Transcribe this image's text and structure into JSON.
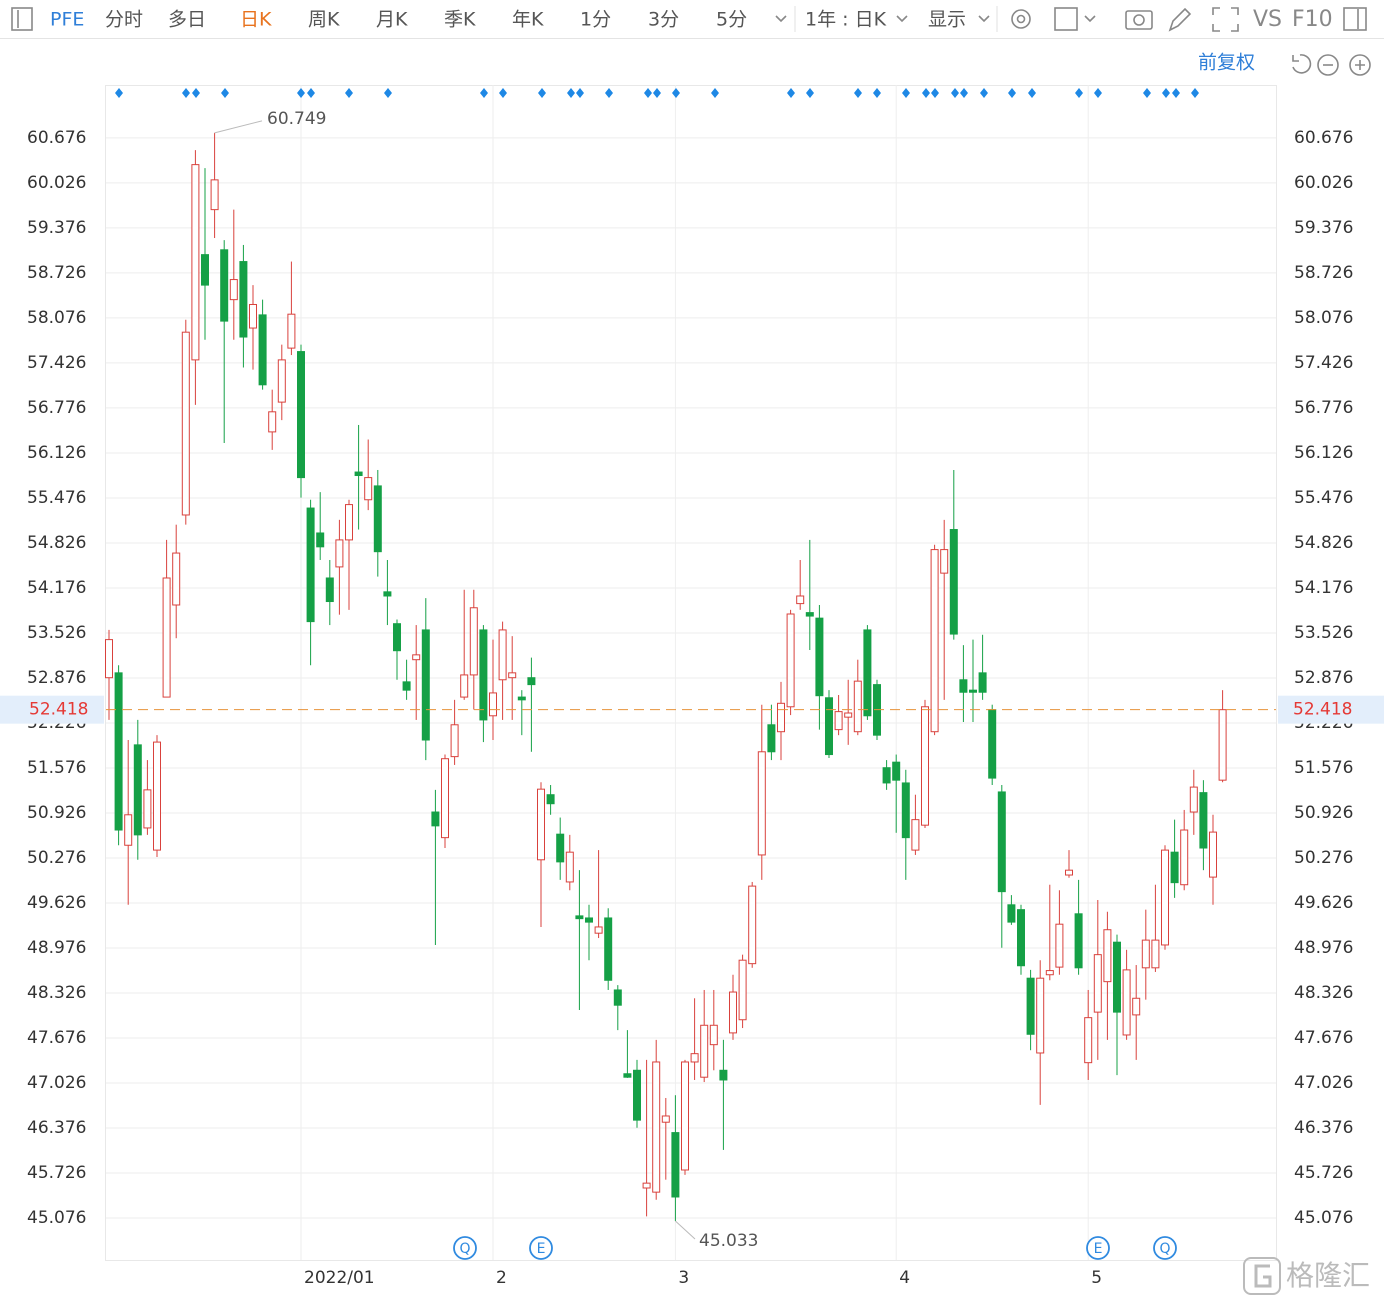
{
  "toolbar": {
    "symbol": "PFE",
    "periods": [
      "分时",
      "多日",
      "日K",
      "周K",
      "月K",
      "季K",
      "年K",
      "1分",
      "3分",
      "5分"
    ],
    "range": "1年 : 日K",
    "display": "显示",
    "vs": "VS",
    "f10": "F10",
    "adjust": "前复权"
  },
  "watermark": "格隆汇",
  "chart_data": {
    "type": "candlestick",
    "categories": [
      null,
      null,
      null,
      null,
      null,
      null,
      null,
      null,
      null,
      null,
      null,
      null,
      null,
      null,
      null,
      null,
      null,
      null,
      null,
      null,
      "2022/01",
      null,
      null,
      null,
      null,
      null,
      null,
      null,
      null,
      null,
      null,
      null,
      null,
      null,
      null,
      null,
      null,
      null,
      null,
      null,
      "2",
      null,
      null,
      null,
      null,
      null,
      null,
      null,
      null,
      null,
      null,
      null,
      null,
      null,
      null,
      null,
      null,
      null,
      null,
      "3",
      null,
      null,
      null,
      null,
      null,
      null,
      null,
      null,
      null,
      null,
      null,
      null,
      null,
      null,
      null,
      null,
      null,
      null,
      null,
      null,
      null,
      null,
      "4",
      null,
      null,
      null,
      null,
      null,
      null,
      null,
      null,
      null,
      null,
      null,
      null,
      null,
      null,
      null,
      null,
      null,
      null,
      null,
      "5",
      null,
      null,
      null,
      null,
      null,
      null,
      null,
      null,
      null,
      null,
      null,
      null,
      null,
      null
    ],
    "open": [
      52.88,
      52.95,
      50.46,
      51.91,
      50.71,
      50.39,
      52.6,
      53.93,
      55.23,
      57.47,
      58.99,
      59.64,
      59.06,
      58.34,
      58.89,
      57.93,
      58.12,
      56.43,
      56.86,
      57.64,
      57.59,
      55.33,
      54.97,
      54.32,
      54.48,
      54.87,
      55.85,
      55.45,
      55.65,
      54.12,
      53.66,
      52.82,
      53.14,
      53.57,
      50.94,
      50.57,
      51.74,
      52.6,
      52.92,
      53.57,
      52.33,
      52.85,
      52.88,
      52.6,
      52.88,
      50.25,
      51.19,
      50.62,
      49.93,
      49.44,
      49.41,
      49.19,
      49.41,
      48.37,
      47.16,
      47.21,
      45.51,
      45.45,
      46.46,
      46.31,
      45.77,
      47.33,
      47.11,
      47.58,
      47.21,
      47.75,
      47.94,
      48.75,
      50.32,
      52.2,
      52.1,
      52.46,
      53.95,
      53.82,
      53.74,
      52.59,
      52.13,
      52.31,
      52.1,
      53.57,
      52.78,
      51.58,
      51.66,
      51.36,
      50.39,
      50.75,
      52.1,
      54.39,
      55.02,
      52.85,
      52.7,
      52.95,
      52.42,
      51.23,
      49.6,
      49.53,
      48.54,
      47.46,
      48.59,
      48.7,
      50.03,
      49.47,
      47.32,
      48.05,
      48.49,
      49.06,
      47.72,
      48.01,
      48.69,
      48.69,
      49.02,
      50.36,
      49.89,
      50.94,
      51.22,
      50.0,
      51.4
    ],
    "high": [
      53.57,
      53.06,
      51.98,
      52.27,
      51.69,
      52.05,
      54.87,
      55.09,
      58.05,
      60.5,
      60.24,
      60.749,
      59.2,
      59.64,
      59.13,
      58.55,
      58.34,
      57.04,
      57.69,
      58.89,
      57.69,
      55.45,
      55.56,
      54.58,
      55.16,
      55.45,
      56.53,
      56.32,
      55.88,
      54.58,
      53.72,
      53.14,
      53.64,
      54.03,
      51.26,
      51.77,
      52.56,
      54.15,
      54.15,
      53.64,
      53.43,
      53.69,
      53.48,
      52.7,
      53.17,
      51.37,
      51.33,
      50.86,
      50.61,
      50.1,
      49.6,
      50.39,
      49.55,
      48.44,
      47.79,
      47.36,
      47.36,
      47.65,
      46.81,
      46.85,
      47.36,
      48.25,
      48.37,
      48.37,
      47.65,
      48.59,
      48.88,
      49.93,
      52.49,
      52.49,
      52.82,
      53.86,
      54.58,
      54.87,
      53.93,
      52.7,
      52.63,
      52.85,
      53.14,
      53.64,
      52.85,
      51.69,
      51.77,
      51.55,
      51.19,
      52.56,
      54.8,
      55.16,
      55.88,
      53.35,
      53.43,
      53.5,
      52.49,
      51.33,
      49.74,
      49.6,
      48.66,
      48.8,
      49.89,
      49.81,
      50.39,
      49.96,
      48.37,
      49.67,
      49.5,
      49.17,
      48.95,
      48.73,
      49.53,
      49.89,
      50.46,
      50.83,
      50.97,
      51.55,
      51.4,
      50.9,
      52.7
    ],
    "low": [
      52.27,
      50.46,
      49.6,
      50.25,
      50.61,
      50.29,
      52.6,
      53.45,
      55.09,
      56.82,
      57.76,
      59.23,
      56.27,
      57.76,
      57.36,
      57.33,
      57.04,
      56.17,
      56.6,
      57.54,
      55.48,
      53.06,
      54.58,
      53.64,
      53.79,
      53.86,
      55.02,
      55.3,
      54.34,
      53.64,
      52.85,
      52.56,
      52.27,
      51.69,
      49.02,
      50.42,
      51.62,
      52.56,
      52.42,
      51.95,
      51.98,
      52.27,
      52.27,
      52.05,
      51.81,
      49.28,
      50.9,
      49.96,
      49.81,
      48.08,
      48.8,
      49.12,
      48.37,
      47.79,
      47.1,
      46.38,
      45.1,
      45.34,
      45.63,
      45.033,
      45.7,
      47.07,
      47.04,
      47.21,
      46.06,
      47.65,
      47.82,
      48.69,
      49.96,
      51.69,
      51.69,
      52.34,
      53.86,
      53.28,
      52.13,
      51.72,
      52.05,
      51.91,
      52.05,
      52.27,
      51.98,
      51.26,
      50.64,
      49.96,
      50.32,
      50.71,
      52.05,
      52.56,
      53.43,
      52.24,
      52.24,
      52.56,
      51.33,
      48.98,
      49.31,
      48.59,
      47.5,
      46.71,
      48.51,
      48.59,
      49.99,
      48.59,
      47.07,
      47.36,
      47.65,
      47.14,
      47.65,
      47.36,
      48.23,
      48.63,
      48.95,
      49.7,
      49.81,
      50.61,
      50.1,
      49.6,
      51.37
    ],
    "close": [
      53.43,
      50.68,
      50.9,
      50.61,
      51.26,
      51.95,
      54.32,
      54.68,
      57.87,
      60.29,
      58.55,
      60.07,
      58.03,
      58.63,
      57.8,
      58.27,
      57.11,
      56.72,
      57.47,
      58.13,
      55.77,
      53.69,
      54.77,
      53.98,
      54.87,
      55.38,
      55.8,
      55.77,
      54.7,
      54.06,
      53.27,
      52.7,
      53.21,
      51.98,
      50.74,
      51.71,
      52.2,
      52.92,
      53.89,
      52.27,
      52.66,
      53.57,
      52.95,
      52.56,
      52.78,
      51.27,
      51.06,
      50.22,
      50.36,
      49.4,
      49.35,
      49.28,
      48.51,
      48.15,
      47.11,
      46.49,
      45.58,
      47.33,
      46.55,
      45.38,
      47.33,
      47.45,
      47.86,
      47.86,
      47.07,
      48.34,
      48.8,
      49.87,
      51.81,
      51.81,
      52.51,
      53.8,
      54.06,
      53.77,
      52.62,
      51.77,
      52.39,
      52.37,
      52.83,
      52.33,
      52.05,
      51.36,
      51.4,
      50.57,
      50.83,
      52.46,
      54.73,
      54.73,
      53.51,
      52.67,
      52.67,
      52.67,
      51.43,
      49.79,
      49.35,
      48.72,
      47.73,
      48.54,
      48.65,
      49.32,
      50.1,
      48.69,
      47.97,
      48.88,
      49.24,
      48.05,
      48.66,
      48.25,
      49.09,
      49.09,
      50.39,
      49.92,
      50.68,
      51.3,
      50.42,
      50.65,
      52.418
    ],
    "up_color": "#d9413c",
    "down_color": "#15a046",
    "ylim": [
      44.47,
      61.44
    ],
    "yticks": [
      60.676,
      60.026,
      59.376,
      58.726,
      58.076,
      57.426,
      56.776,
      56.126,
      55.476,
      54.826,
      54.176,
      53.526,
      52.876,
      52.226,
      51.576,
      50.926,
      50.276,
      49.626,
      48.976,
      48.326,
      47.676,
      47.026,
      46.376,
      45.726,
      45.076
    ],
    "grid": true,
    "events": [
      "Q",
      "E",
      "E",
      "Q"
    ]
  }
}
